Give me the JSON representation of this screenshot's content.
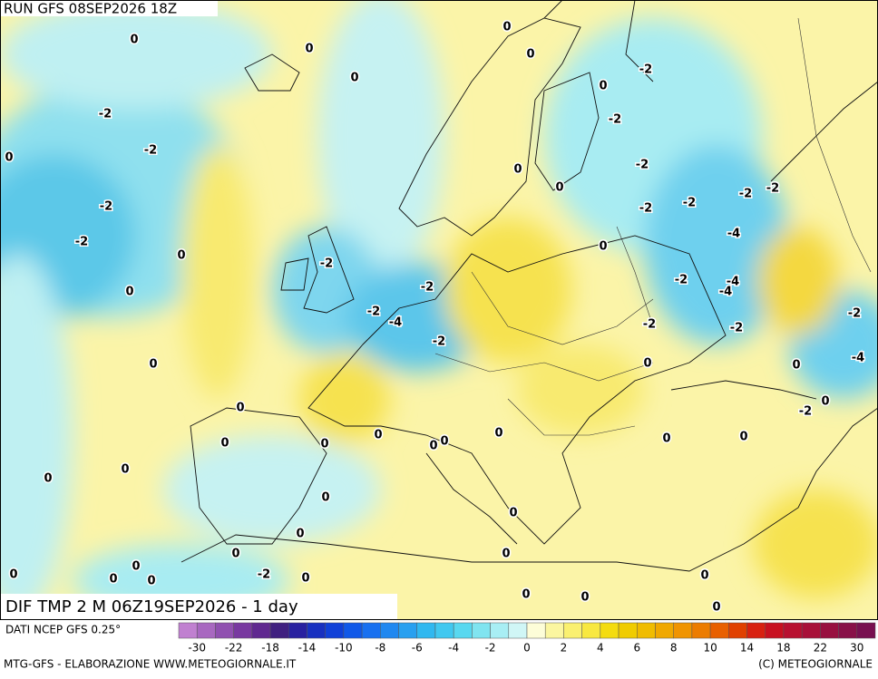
{
  "header": {
    "run": "RUN GFS 08SEP2026 18Z"
  },
  "map": {
    "title": "DIF TMP 2 M 06Z19SEP2026 - 1 day",
    "labels": [
      0,
      0,
      0,
      -2,
      -2,
      0,
      -2,
      -2,
      0,
      0,
      -2,
      -2,
      -4,
      -2,
      -2,
      0,
      0,
      0,
      0,
      0,
      0,
      0,
      0,
      0,
      0,
      0,
      0,
      0,
      0,
      0,
      0,
      0,
      -2,
      0,
      0,
      0,
      0,
      0,
      0,
      0,
      0,
      0,
      0,
      0,
      0,
      -2,
      -4,
      -2,
      -2,
      -2,
      -2,
      -4,
      -4,
      -4,
      -2,
      -2,
      -2,
      -2,
      -2,
      -2,
      -2,
      0,
      0,
      0,
      0,
      0,
      0
    ]
  },
  "colorbar": {
    "source": "DATI NCEP GFS 0.25°",
    "colors": [
      "#c080d0",
      "#a868c0",
      "#9050b0",
      "#7838a0",
      "#602890",
      "#402080",
      "#2820a0",
      "#1830c0",
      "#1040d8",
      "#1058e8",
      "#1870f0",
      "#2088f0",
      "#28a0f0",
      "#30b8f0",
      "#40c8f0",
      "#58d8f0",
      "#80e4f0",
      "#a8eef4",
      "#d0f6f6",
      "#fdfdd8",
      "#fbf6a0",
      "#faf070",
      "#f8e840",
      "#f4dc10",
      "#f0cc00",
      "#f0bc00",
      "#f0a800",
      "#f09400",
      "#ec7c00",
      "#e86000",
      "#e04000",
      "#d82010",
      "#c81020",
      "#b81030",
      "#a81038",
      "#981040",
      "#881048",
      "#781050"
    ],
    "ticks": [
      -30,
      -22,
      -18,
      -14,
      -10,
      -8,
      -6,
      -4,
      -2,
      0,
      2,
      4,
      6,
      8,
      10,
      14,
      18,
      22,
      30
    ]
  },
  "footer": {
    "left": "MTG-GFS - ELABORAZIONE WWW.METEOGIORNALE.IT",
    "right": "(C) METEOGIORNALE"
  }
}
